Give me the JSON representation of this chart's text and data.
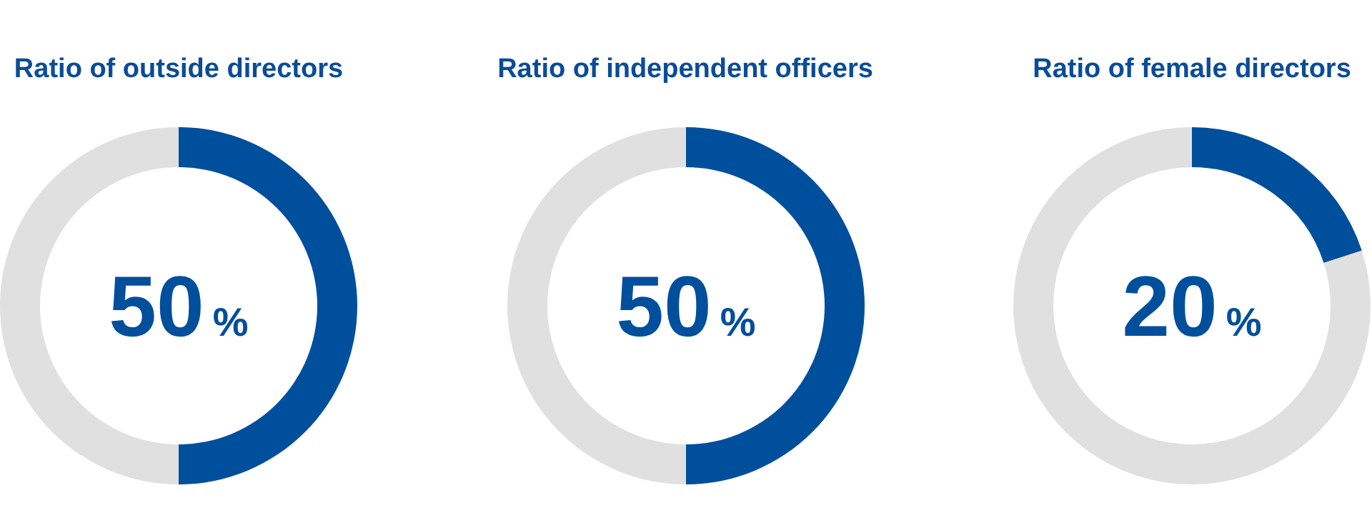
{
  "chart_data": [
    {
      "type": "donut",
      "title": "Ratio of outside directors",
      "categories": [
        null,
        null
      ],
      "values": [
        50,
        50
      ],
      "colors": [
        "#004f9c",
        "#e0e0e0"
      ],
      "annotations": [
        "50%"
      ],
      "legend": false
    },
    {
      "type": "donut",
      "title": "Ratio of independent officers",
      "categories": [
        null,
        null
      ],
      "values": [
        50,
        50
      ],
      "colors": [
        "#004f9c",
        "#e0e0e0"
      ],
      "annotations": [
        "50%"
      ],
      "legend": false
    },
    {
      "type": "donut",
      "title": "Ratio of female directors",
      "categories": [
        null,
        null
      ],
      "values": [
        20,
        80
      ],
      "colors": [
        "#004f9c",
        "#e0e0e0"
      ],
      "annotations": [
        "20%"
      ],
      "legend": false
    }
  ]
}
